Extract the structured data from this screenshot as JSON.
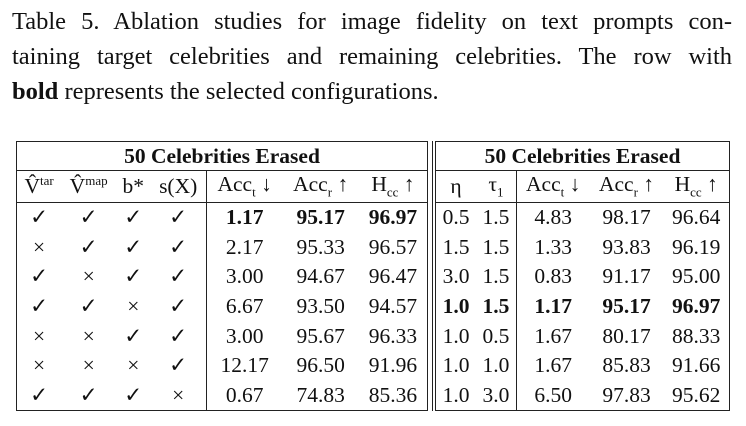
{
  "caption": {
    "line1": "Table 5. Ablation studies for image fidelity on text prompts con-",
    "line2": "taining target celebrities and remaining celebrities. The row with",
    "line3_bold": "bold",
    "line3_rest": "represents the selected configurations."
  },
  "left_table": {
    "title": "50 Celebrities Erased",
    "columns": [
      {
        "text": "V̂",
        "sup": "tar"
      },
      {
        "text": "V̂",
        "sup": "map"
      },
      {
        "text": "b*"
      },
      {
        "text": "s(X)"
      },
      {
        "text": "Acc",
        "sub": "t",
        "arrow": "↓"
      },
      {
        "text": "Acc",
        "sub": "r",
        "arrow": "↑"
      },
      {
        "text": "H",
        "sub": "cc",
        "arrow": "↑"
      }
    ],
    "rows": [
      [
        "✓",
        "✓",
        "✓",
        "✓",
        "1.17",
        "95.17",
        "96.97"
      ],
      [
        "×",
        "✓",
        "✓",
        "✓",
        "2.17",
        "95.33",
        "96.57"
      ],
      [
        "✓",
        "×",
        "✓",
        "✓",
        "3.00",
        "94.67",
        "96.47"
      ],
      [
        "✓",
        "✓",
        "×",
        "✓",
        "6.67",
        "93.50",
        "94.57"
      ],
      [
        "×",
        "×",
        "✓",
        "✓",
        "3.00",
        "95.67",
        "96.33"
      ],
      [
        "×",
        "×",
        "×",
        "✓",
        "12.17",
        "96.50",
        "91.96"
      ],
      [
        "✓",
        "✓",
        "✓",
        "×",
        "0.67",
        "74.83",
        "85.36"
      ]
    ],
    "bold_row": 0,
    "bold_cols": [
      4,
      5,
      6
    ]
  },
  "right_table": {
    "title": "50 Celebrities Erased",
    "columns": [
      {
        "text": "η"
      },
      {
        "text": "τ",
        "sub": "1"
      },
      {
        "text": "Acc",
        "sub": "t",
        "arrow": "↓"
      },
      {
        "text": "Acc",
        "sub": "r",
        "arrow": "↑"
      },
      {
        "text": "H",
        "sub": "cc",
        "arrow": "↑"
      }
    ],
    "rows": [
      [
        "0.5",
        "1.5",
        "4.83",
        "98.17",
        "96.64"
      ],
      [
        "1.5",
        "1.5",
        "1.33",
        "93.83",
        "96.19"
      ],
      [
        "3.0",
        "1.5",
        "0.83",
        "91.17",
        "95.00"
      ],
      [
        "1.0",
        "1.5",
        "1.17",
        "95.17",
        "96.97"
      ],
      [
        "1.0",
        "0.5",
        "1.67",
        "80.17",
        "88.33"
      ],
      [
        "1.0",
        "1.0",
        "1.67",
        "85.83",
        "91.66"
      ],
      [
        "1.0",
        "3.0",
        "6.50",
        "97.83",
        "95.62"
      ]
    ],
    "bold_row": 3,
    "bold_cols": [
      0,
      1,
      2,
      3,
      4
    ]
  }
}
